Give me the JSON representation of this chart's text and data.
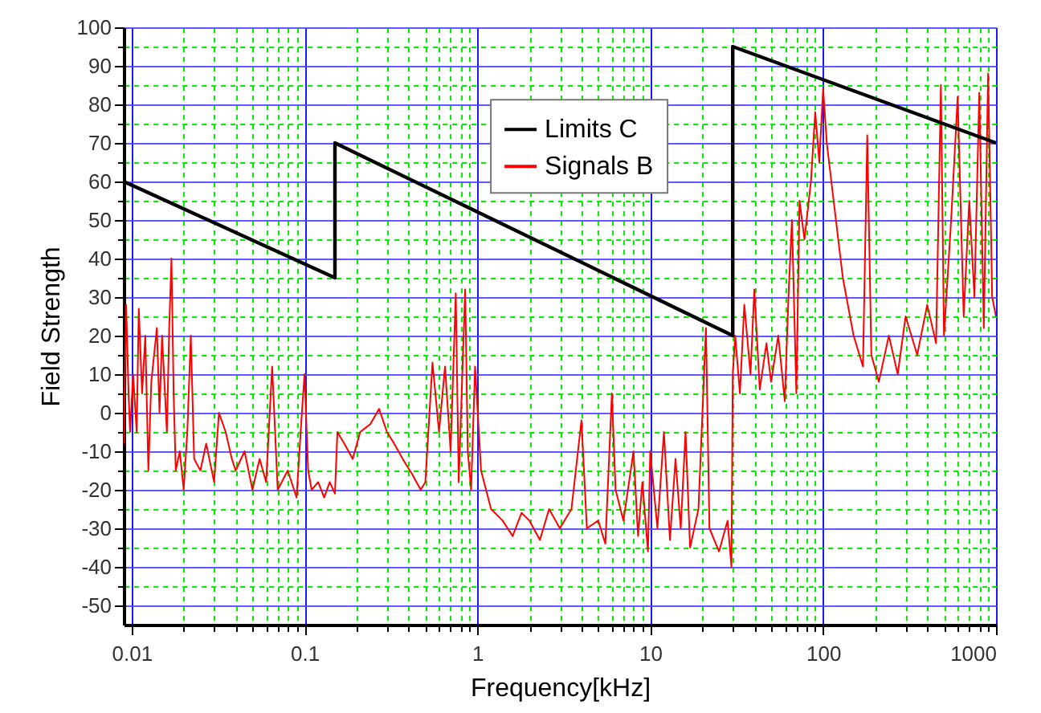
{
  "chart_data": {
    "type": "line",
    "xlabel": "Frequency[kHz]",
    "ylabel": "Field Strength",
    "log": "x",
    "xlim": [
      0.009,
      1000
    ],
    "xticks": [
      0.01,
      {
        "value": 0.02,
        "label": null
      },
      {
        "value": 0.03,
        "label": null
      },
      {
        "value": 0.04,
        "label": null
      },
      {
        "value": 0.05,
        "label": null
      },
      {
        "value": 0.06,
        "label": null
      },
      {
        "value": 0.07,
        "label": null
      },
      {
        "value": 0.08,
        "label": null
      },
      {
        "value": 0.09,
        "label": null
      },
      0.1,
      {
        "value": 0.2,
        "label": null
      },
      {
        "value": 0.3,
        "label": null
      },
      {
        "value": 0.4,
        "label": null
      },
      {
        "value": 0.5,
        "label": null
      },
      {
        "value": 0.6,
        "label": null
      },
      {
        "value": 0.7,
        "label": null
      },
      {
        "value": 0.8,
        "label": null
      },
      {
        "value": 0.9,
        "label": null
      },
      1,
      {
        "value": 2,
        "label": null
      },
      {
        "value": 3,
        "label": null
      },
      {
        "value": 4,
        "label": null
      },
      {
        "value": 5,
        "label": null
      },
      {
        "value": 6,
        "label": null
      },
      {
        "value": 7,
        "label": null
      },
      {
        "value": 8,
        "label": null
      },
      {
        "value": 9,
        "label": null
      },
      10,
      {
        "value": 20,
        "label": null
      },
      {
        "value": 30,
        "label": null
      },
      {
        "value": 40,
        "label": null
      },
      {
        "value": 50,
        "label": null
      },
      {
        "value": 60,
        "label": null
      },
      {
        "value": 70,
        "label": null
      },
      {
        "value": 80,
        "label": null
      },
      {
        "value": 90,
        "label": null
      },
      100,
      {
        "value": 200,
        "label": null
      },
      {
        "value": 300,
        "label": null
      },
      {
        "value": 400,
        "label": null
      },
      {
        "value": 500,
        "label": null
      },
      {
        "value": 600,
        "label": null
      },
      {
        "value": 700,
        "label": null
      },
      {
        "value": 800,
        "label": null
      },
      {
        "value": 900,
        "label": null
      },
      1000
    ],
    "ylim": [
      -55,
      100
    ],
    "yticks": [
      -50,
      {
        "value": -45,
        "label": null
      },
      -40,
      {
        "value": -35,
        "label": null
      },
      -30,
      {
        "value": -25,
        "label": null
      },
      -20,
      {
        "value": -15,
        "label": null
      },
      -10,
      {
        "value": -5,
        "label": null
      },
      0,
      {
        "value": 5,
        "label": null
      },
      10,
      {
        "value": 15,
        "label": null
      },
      20,
      {
        "value": 25,
        "label": null
      },
      30,
      {
        "value": 35,
        "label": null
      },
      40,
      {
        "value": 45,
        "label": null
      },
      50,
      {
        "value": 55,
        "label": null
      },
      60,
      {
        "value": 65,
        "label": null
      },
      70,
      {
        "value": 75,
        "label": null
      },
      80,
      {
        "value": 85,
        "label": null
      },
      90,
      {
        "value": 95,
        "label": null
      },
      100
    ],
    "grid": true,
    "legend": "top",
    "line_style": "solid",
    "series": [
      {
        "name": "Limits C",
        "color": "#000000",
        "x": [
          0.009,
          0.15,
          0.15,
          30,
          30,
          1000
        ],
        "values": [
          60,
          35,
          70,
          20,
          95,
          70
        ]
      },
      {
        "name": "Signals B",
        "color": "#ff0000",
        "x": [
          0.009,
          0.0093,
          0.0096,
          0.0098,
          0.0102,
          0.0107,
          0.011,
          0.0115,
          0.012,
          0.0125,
          0.013,
          0.014,
          0.0145,
          0.015,
          0.016,
          0.0165,
          0.017,
          0.0175,
          0.018,
          0.019,
          0.02,
          0.021,
          0.022,
          0.023,
          0.025,
          0.027,
          0.03,
          0.032,
          0.035,
          0.038,
          0.04,
          0.045,
          0.05,
          0.055,
          0.06,
          0.065,
          0.07,
          0.08,
          0.09,
          0.095,
          0.1,
          0.105,
          0.11,
          0.12,
          0.13,
          0.14,
          0.15,
          0.155,
          0.17,
          0.19,
          0.21,
          0.24,
          0.27,
          0.3,
          0.33,
          0.37,
          0.42,
          0.47,
          0.5,
          0.55,
          0.6,
          0.65,
          0.7,
          0.75,
          0.78,
          0.85,
          0.88,
          0.92,
          0.97,
          1.05,
          1.2,
          1.4,
          1.6,
          1.8,
          2,
          2.3,
          2.6,
          3,
          3.5,
          4,
          4.3,
          5,
          5.5,
          6,
          6.3,
          7,
          8,
          8.5,
          9,
          9.7,
          10,
          11,
          12,
          13,
          14,
          15,
          16,
          17,
          19,
          21,
          22,
          25,
          28,
          29.5,
          30,
          31,
          33,
          35,
          38,
          40,
          43,
          47,
          50,
          55,
          60,
          63,
          66,
          70,
          73,
          78,
          85,
          90,
          95,
          100,
          105,
          115,
          130,
          150,
          170,
          180,
          190,
          210,
          240,
          270,
          300,
          350,
          400,
          450,
          480,
          500,
          550,
          600,
          650,
          700,
          750,
          800,
          850,
          900,
          950,
          1000
        ],
        "values": [
          -8,
          28,
          5,
          -5,
          10,
          -5,
          27,
          5,
          20,
          -15,
          8,
          22,
          0,
          20,
          -5,
          22,
          40,
          5,
          -15,
          -10,
          -20,
          -5,
          20,
          -12,
          -15,
          -8,
          -18,
          0,
          -5,
          -12,
          -15,
          -10,
          -20,
          -12,
          -18,
          12,
          -20,
          -15,
          -22,
          -5,
          10,
          -15,
          -20,
          -18,
          -22,
          -18,
          -21,
          -5,
          -8,
          -12,
          -5,
          -3,
          1,
          -5,
          -8,
          -12,
          -16,
          -20,
          -18,
          13,
          -5,
          12,
          -10,
          31,
          -18,
          32,
          -10,
          -20,
          12,
          -15,
          -25,
          -28,
          -32,
          -26,
          -28,
          -33,
          -25,
          -30,
          -25,
          -2,
          -30,
          -28,
          -34,
          5,
          -20,
          -28,
          -10,
          -32,
          -18,
          -36,
          -10,
          -30,
          -5,
          -33,
          -12,
          -30,
          -5,
          -35,
          -25,
          22,
          -30,
          -36,
          -28,
          -40,
          10,
          20,
          5,
          28,
          10,
          32,
          6,
          18,
          8,
          20,
          3,
          30,
          50,
          5,
          55,
          45,
          60,
          78,
          65,
          84,
          70,
          55,
          35,
          20,
          12,
          72,
          15,
          8,
          20,
          10,
          25,
          15,
          28,
          18,
          85,
          20,
          50,
          82,
          25,
          55,
          30,
          83,
          22,
          88,
          30,
          25
        ]
      }
    ]
  }
}
